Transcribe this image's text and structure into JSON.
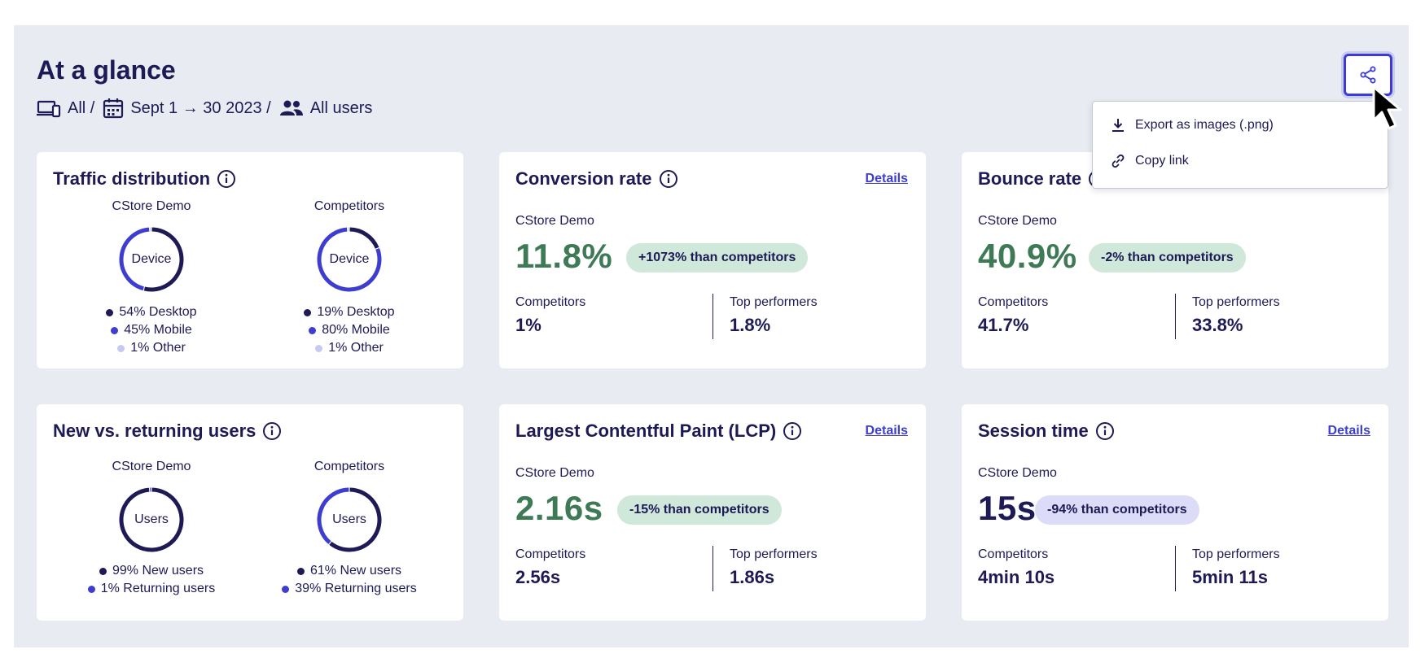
{
  "header": {
    "title": "At a glance",
    "filters": {
      "devices": "All /",
      "date_range": "Sept 1 → 30 2023 /",
      "segment": "All users"
    }
  },
  "share_menu": {
    "items": [
      {
        "label": "Export as images (.png)",
        "icon": "download-icon"
      },
      {
        "label": "Copy link",
        "icon": "link-icon"
      }
    ]
  },
  "colors": {
    "navy": "#1d1a55",
    "blue": "#3d3dcf",
    "light_blue": "#c7c9f2",
    "green_value": "#3f7a57",
    "green_pill": "#cfe8da",
    "lavender_pill": "#dcdcf8",
    "panel_bg": "#e8ebf1"
  },
  "traffic": {
    "title": "Traffic distribution",
    "own": {
      "label": "CStore Demo",
      "center": "Device",
      "segments": [
        {
          "label": "54% Desktop",
          "value": 54,
          "color": "#1d1a55"
        },
        {
          "label": "45% Mobile",
          "value": 45,
          "color": "#3d3dcf"
        },
        {
          "label": "1% Other",
          "value": 1,
          "color": "#c7c9f2"
        }
      ]
    },
    "comp": {
      "label": "Competitors",
      "center": "Device",
      "segments": [
        {
          "label": "19% Desktop",
          "value": 19,
          "color": "#1d1a55"
        },
        {
          "label": "80% Mobile",
          "value": 80,
          "color": "#3d3dcf"
        },
        {
          "label": "1% Other",
          "value": 1,
          "color": "#c7c9f2"
        }
      ]
    }
  },
  "users": {
    "title": "New vs. returning users",
    "own": {
      "label": "CStore Demo",
      "center": "Users",
      "segments": [
        {
          "label": "99% New users",
          "value": 99,
          "color": "#1d1a55"
        },
        {
          "label": "1% Returning users",
          "value": 1,
          "color": "#3d3dcf"
        }
      ]
    },
    "comp": {
      "label": "Competitors",
      "center": "Users",
      "segments": [
        {
          "label": "61% New users",
          "value": 61,
          "color": "#1d1a55"
        },
        {
          "label": "39% Returning users",
          "value": 39,
          "color": "#3d3dcf"
        }
      ]
    }
  },
  "conversion": {
    "title": "Conversion rate",
    "details": "Details",
    "own_label": "CStore Demo",
    "value": "11.8%",
    "badge": "+1073% than competitors",
    "competitors_label": "Competitors",
    "competitors_value": "1%",
    "top_label": "Top performers",
    "top_value": "1.8%"
  },
  "bounce": {
    "title": "Bounce rate",
    "own_label": "CStore Demo",
    "value": "40.9%",
    "badge": "-2% than competitors",
    "competitors_label": "Competitors",
    "competitors_value": "41.7%",
    "top_label": "Top performers",
    "top_value": "33.8%"
  },
  "lcp": {
    "title": "Largest Contentful Paint (LCP)",
    "details": "Details",
    "own_label": "CStore Demo",
    "value": "2.16s",
    "badge": "-15% than competitors",
    "competitors_label": "Competitors",
    "competitors_value": "2.56s",
    "top_label": "Top performers",
    "top_value": "1.86s"
  },
  "session": {
    "title": "Session time",
    "details": "Details",
    "own_label": "CStore Demo",
    "value": "15s",
    "badge": "-94% than competitors",
    "competitors_label": "Competitors",
    "competitors_value": "4min 10s",
    "top_label": "Top performers",
    "top_value": "5min 11s"
  }
}
